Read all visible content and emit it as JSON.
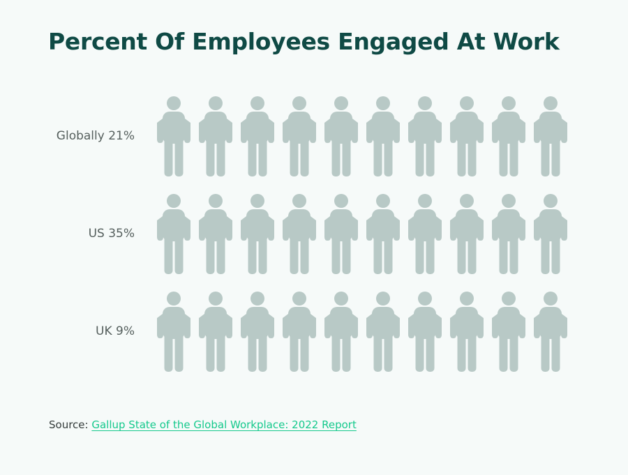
{
  "chart_data": {
    "type": "pictogram",
    "title": "Percent Of Employees Engaged At Work",
    "unit_percent_per_icon": 10,
    "icons_per_row": 10,
    "rows": [
      {
        "label": "Globally 21%",
        "value": 21
      },
      {
        "label": "US 35%",
        "value": 35
      },
      {
        "label": "UK 9%",
        "value": 9
      }
    ],
    "colors": {
      "engaged": "#00cc8e",
      "not_engaged": "#b8c9c6"
    }
  },
  "source": {
    "prefix": "Source:",
    "link_text": "Gallup State of the Global Workplace: 2022 Report"
  }
}
